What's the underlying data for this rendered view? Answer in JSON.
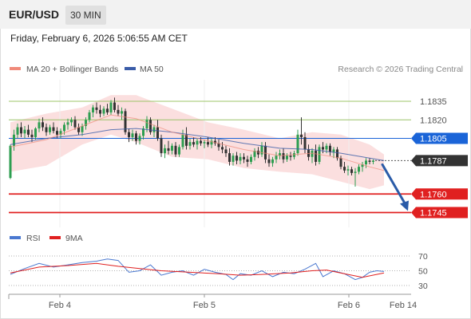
{
  "header": {
    "symbol": "EUR/USD",
    "timeframe": "30 MIN"
  },
  "datetime": "Friday, February 6, 2026 5:06:55 AM CET",
  "legend": {
    "ma20": "MA 20 + Bollinger Bands",
    "ma50": "MA 50"
  },
  "credit": "Research © 2026 Trading Central",
  "colors": {
    "bollinger": "#f6b8b8",
    "ma20": "#f08a7a",
    "ma50": "#3a5ca8",
    "bull": "#2e9e50",
    "bear": "#333333",
    "resistance": "#9cc46a",
    "pivot": "#1a64d8",
    "support": "#e02020",
    "current": "#333333",
    "arrow": "#2a5ba8",
    "rsi": "#4a78d0",
    "rsi_ma": "#e02020"
  },
  "chart_data": [
    {
      "type": "candlestick",
      "ylim": [
        1.1735,
        1.1855
      ],
      "x_ticks": [
        "Feb 4",
        "Feb 5",
        "Feb 6",
        "Feb 14"
      ],
      "candles": [
        [
          1.1773,
          1.18,
          1.1772,
          1.1799
        ],
        [
          1.1799,
          1.1812,
          1.1795,
          1.1808
        ],
        [
          1.1808,
          1.1817,
          1.1805,
          1.1814
        ],
        [
          1.1814,
          1.1818,
          1.1806,
          1.1809
        ],
        [
          1.1809,
          1.1815,
          1.1805,
          1.1812
        ],
        [
          1.1812,
          1.1816,
          1.1806,
          1.1808
        ],
        [
          1.1808,
          1.1812,
          1.1802,
          1.1806
        ],
        [
          1.1806,
          1.1814,
          1.1804,
          1.1813
        ],
        [
          1.1813,
          1.1821,
          1.181,
          1.1818
        ],
        [
          1.1818,
          1.1822,
          1.1811,
          1.1814
        ],
        [
          1.1814,
          1.1817,
          1.1807,
          1.181
        ],
        [
          1.181,
          1.1816,
          1.1808,
          1.1814
        ],
        [
          1.1814,
          1.1818,
          1.1809,
          1.1811
        ],
        [
          1.1811,
          1.1814,
          1.1805,
          1.1808
        ],
        [
          1.1808,
          1.1813,
          1.1805,
          1.1811
        ],
        [
          1.1811,
          1.1818,
          1.1808,
          1.1816
        ],
        [
          1.1816,
          1.1821,
          1.1812,
          1.1818
        ],
        [
          1.1818,
          1.1822,
          1.1815,
          1.182
        ],
        [
          1.182,
          1.1823,
          1.1812,
          1.1814
        ],
        [
          1.1814,
          1.1817,
          1.1808,
          1.181
        ],
        [
          1.181,
          1.1817,
          1.1807,
          1.1815
        ],
        [
          1.1815,
          1.1822,
          1.1812,
          1.182
        ],
        [
          1.182,
          1.1828,
          1.1818,
          1.1826
        ],
        [
          1.1826,
          1.1832,
          1.1822,
          1.183
        ],
        [
          1.183,
          1.1834,
          1.1825,
          1.1828
        ],
        [
          1.1828,
          1.1832,
          1.1822,
          1.1825
        ],
        [
          1.1825,
          1.1831,
          1.1823,
          1.1829
        ],
        [
          1.1829,
          1.1833,
          1.1824,
          1.1826
        ],
        [
          1.1826,
          1.1836,
          1.1824,
          1.1834
        ],
        [
          1.1834,
          1.1838,
          1.1826,
          1.1828
        ],
        [
          1.1828,
          1.1832,
          1.1823,
          1.1825
        ],
        [
          1.1825,
          1.183,
          1.182,
          1.1827
        ],
        [
          1.1827,
          1.1829,
          1.1808,
          1.181
        ],
        [
          1.181,
          1.1813,
          1.1802,
          1.1806
        ],
        [
          1.1806,
          1.1812,
          1.1803,
          1.1809
        ],
        [
          1.1809,
          1.1811,
          1.18,
          1.1803
        ],
        [
          1.1803,
          1.1809,
          1.18,
          1.1807
        ],
        [
          1.1807,
          1.1815,
          1.1804,
          1.1813
        ],
        [
          1.1813,
          1.1823,
          1.181,
          1.182
        ],
        [
          1.182,
          1.1822,
          1.1808,
          1.181
        ],
        [
          1.181,
          1.1816,
          1.1806,
          1.1814
        ],
        [
          1.1814,
          1.182,
          1.1803,
          1.1805
        ],
        [
          1.1805,
          1.1808,
          1.179,
          1.1793
        ],
        [
          1.1793,
          1.18,
          1.1789,
          1.1797
        ],
        [
          1.1797,
          1.1803,
          1.1792,
          1.1795
        ],
        [
          1.1795,
          1.1801,
          1.1792,
          1.1799
        ],
        [
          1.1799,
          1.1802,
          1.179,
          1.1792
        ],
        [
          1.1792,
          1.18,
          1.179,
          1.1798
        ],
        [
          1.1798,
          1.1812,
          1.1796,
          1.1808
        ],
        [
          1.1808,
          1.1814,
          1.1796,
          1.1799
        ],
        [
          1.1799,
          1.1805,
          1.1796,
          1.1802
        ],
        [
          1.1802,
          1.1806,
          1.1798,
          1.18
        ],
        [
          1.18,
          1.1805,
          1.1796,
          1.1803
        ],
        [
          1.1803,
          1.1806,
          1.1799,
          1.1801
        ],
        [
          1.1801,
          1.1804,
          1.1797,
          1.1802
        ],
        [
          1.1802,
          1.1806,
          1.1798,
          1.18
        ],
        [
          1.18,
          1.1805,
          1.1797,
          1.1803
        ],
        [
          1.1803,
          1.1806,
          1.1799,
          1.1801
        ],
        [
          1.1801,
          1.1804,
          1.1795,
          1.1798
        ],
        [
          1.1798,
          1.1802,
          1.1793,
          1.1796
        ],
        [
          1.1796,
          1.1799,
          1.179,
          1.1793
        ],
        [
          1.1793,
          1.1797,
          1.1783,
          1.1786
        ],
        [
          1.1786,
          1.1793,
          1.1783,
          1.1791
        ],
        [
          1.1791,
          1.1794,
          1.1784,
          1.1787
        ],
        [
          1.1787,
          1.1793,
          1.1784,
          1.179
        ],
        [
          1.179,
          1.1793,
          1.1785,
          1.1788
        ],
        [
          1.1788,
          1.1791,
          1.1782,
          1.1786
        ],
        [
          1.1786,
          1.1792,
          1.1784,
          1.179
        ],
        [
          1.179,
          1.1797,
          1.1787,
          1.1795
        ],
        [
          1.1795,
          1.1798,
          1.1789,
          1.1792
        ],
        [
          1.1792,
          1.1802,
          1.179,
          1.1799
        ],
        [
          1.1799,
          1.1802,
          1.1785,
          1.1788
        ],
        [
          1.1788,
          1.1792,
          1.1782,
          1.1785
        ],
        [
          1.1785,
          1.179,
          1.1782,
          1.1788
        ],
        [
          1.1788,
          1.1794,
          1.1785,
          1.1791
        ],
        [
          1.1791,
          1.1796,
          1.1788,
          1.1793
        ],
        [
          1.1793,
          1.1797,
          1.1785,
          1.1788
        ],
        [
          1.1788,
          1.1793,
          1.1786,
          1.1791
        ],
        [
          1.1791,
          1.1794,
          1.1787,
          1.179
        ],
        [
          1.179,
          1.1795,
          1.1788,
          1.1793
        ],
        [
          1.1793,
          1.1812,
          1.1791,
          1.1808
        ],
        [
          1.1808,
          1.1822,
          1.18,
          1.1806
        ],
        [
          1.1806,
          1.181,
          1.1793,
          1.1796
        ],
        [
          1.1796,
          1.18,
          1.1787,
          1.179
        ],
        [
          1.179,
          1.1797,
          1.1785,
          1.1795
        ],
        [
          1.1795,
          1.18,
          1.1783,
          1.1786
        ],
        [
          1.1786,
          1.18,
          1.1784,
          1.1798
        ],
        [
          1.1798,
          1.1802,
          1.1793,
          1.1796
        ],
        [
          1.1796,
          1.1801,
          1.1793,
          1.1799
        ],
        [
          1.1799,
          1.1801,
          1.1791,
          1.1794
        ],
        [
          1.1794,
          1.1798,
          1.1789,
          1.1796
        ],
        [
          1.1796,
          1.1798,
          1.1787,
          1.1789
        ],
        [
          1.1789,
          1.1791,
          1.178,
          1.1782
        ],
        [
          1.1782,
          1.1786,
          1.1777,
          1.1779
        ],
        [
          1.1779,
          1.1783,
          1.1775,
          1.178
        ],
        [
          1.178,
          1.1782,
          1.1775,
          1.1777
        ],
        [
          1.1777,
          1.1781,
          1.1766,
          1.1778
        ],
        [
          1.1778,
          1.1784,
          1.1776,
          1.1782
        ],
        [
          1.1782,
          1.1786,
          1.1778,
          1.1784
        ],
        [
          1.1784,
          1.1789,
          1.1781,
          1.1787
        ],
        [
          1.1787,
          1.1789,
          1.1784,
          1.1786
        ],
        [
          1.1786,
          1.1788,
          1.1784,
          1.1787
        ]
      ],
      "bollinger_upper": [
        [
          0,
          1.1818
        ],
        [
          10,
          1.1825
        ],
        [
          20,
          1.183
        ],
        [
          28,
          1.184
        ],
        [
          35,
          1.184
        ],
        [
          45,
          1.1829
        ],
        [
          55,
          1.1818
        ],
        [
          65,
          1.1812
        ],
        [
          75,
          1.1805
        ],
        [
          84,
          1.181
        ],
        [
          92,
          1.1808
        ],
        [
          100,
          1.18
        ],
        [
          104,
          1.1792
        ]
      ],
      "bollinger_lower": [
        [
          0,
          1.1778
        ],
        [
          10,
          1.1783
        ],
        [
          20,
          1.18
        ],
        [
          28,
          1.1808
        ],
        [
          35,
          1.1802
        ],
        [
          45,
          1.179
        ],
        [
          55,
          1.1788
        ],
        [
          65,
          1.1781
        ],
        [
          75,
          1.1778
        ],
        [
          84,
          1.1776
        ],
        [
          92,
          1.177
        ],
        [
          100,
          1.1764
        ],
        [
          104,
          1.1767
        ]
      ],
      "ma20": [
        [
          0,
          1.1798
        ],
        [
          10,
          1.1804
        ],
        [
          20,
          1.1815
        ],
        [
          28,
          1.1824
        ],
        [
          35,
          1.1821
        ],
        [
          45,
          1.181
        ],
        [
          55,
          1.1803
        ],
        [
          65,
          1.1796
        ],
        [
          75,
          1.1791
        ],
        [
          84,
          1.1793
        ],
        [
          92,
          1.1789
        ],
        [
          100,
          1.1782
        ],
        [
          104,
          1.1779
        ]
      ],
      "ma50": [
        [
          0,
          1.18
        ],
        [
          10,
          1.1805
        ],
        [
          20,
          1.1808
        ],
        [
          28,
          1.1812
        ],
        [
          35,
          1.1813
        ],
        [
          45,
          1.181
        ],
        [
          55,
          1.1806
        ],
        [
          65,
          1.1801
        ],
        [
          75,
          1.1797
        ],
        [
          84,
          1.1796
        ],
        [
          92,
          1.1793
        ],
        [
          100,
          1.1789
        ],
        [
          104,
          1.1787
        ]
      ],
      "levels": [
        {
          "value": 1.1835,
          "label": "1.1835",
          "kind": "resistance"
        },
        {
          "value": 1.182,
          "label": "1.1820",
          "kind": "resistance"
        },
        {
          "value": 1.1805,
          "label": "1.1805",
          "kind": "pivot"
        },
        {
          "value": 1.1787,
          "label": "1.1787",
          "kind": "current"
        },
        {
          "value": 1.176,
          "label": "1.1760",
          "kind": "support"
        },
        {
          "value": 1.1745,
          "label": "1.1745",
          "kind": "support"
        }
      ],
      "arrow": {
        "from": [
          1.1787
        ],
        "to": [
          1.1745
        ]
      }
    },
    {
      "type": "line",
      "legend": [
        "RSI",
        "9MA"
      ],
      "ylim": [
        25,
        75
      ],
      "y_ticks": [
        70,
        50,
        30
      ],
      "rsi": [
        [
          0,
          45
        ],
        [
          4,
          53
        ],
        [
          8,
          60
        ],
        [
          12,
          55
        ],
        [
          16,
          58
        ],
        [
          20,
          61
        ],
        [
          24,
          63
        ],
        [
          27,
          66
        ],
        [
          30,
          64
        ],
        [
          33,
          48
        ],
        [
          36,
          50
        ],
        [
          39,
          58
        ],
        [
          42,
          44
        ],
        [
          45,
          48
        ],
        [
          48,
          50
        ],
        [
          51,
          44
        ],
        [
          54,
          52
        ],
        [
          57,
          48
        ],
        [
          60,
          45
        ],
        [
          62,
          38
        ],
        [
          64,
          46
        ],
        [
          67,
          44
        ],
        [
          70,
          50
        ],
        [
          73,
          42
        ],
        [
          76,
          48
        ],
        [
          79,
          46
        ],
        [
          82,
          52
        ],
        [
          85,
          60
        ],
        [
          87,
          42
        ],
        [
          90,
          50
        ],
        [
          93,
          46
        ],
        [
          96,
          38
        ],
        [
          98,
          41
        ],
        [
          100,
          48
        ],
        [
          102,
          50
        ],
        [
          104,
          49
        ]
      ],
      "rsi_ma": [
        [
          0,
          47
        ],
        [
          8,
          55
        ],
        [
          16,
          57
        ],
        [
          24,
          60
        ],
        [
          30,
          56
        ],
        [
          36,
          53
        ],
        [
          42,
          50
        ],
        [
          50,
          48
        ],
        [
          58,
          46
        ],
        [
          64,
          44
        ],
        [
          70,
          45
        ],
        [
          78,
          47
        ],
        [
          84,
          50
        ],
        [
          88,
          51
        ],
        [
          93,
          46
        ],
        [
          98,
          41
        ],
        [
          104,
          47
        ]
      ]
    }
  ]
}
